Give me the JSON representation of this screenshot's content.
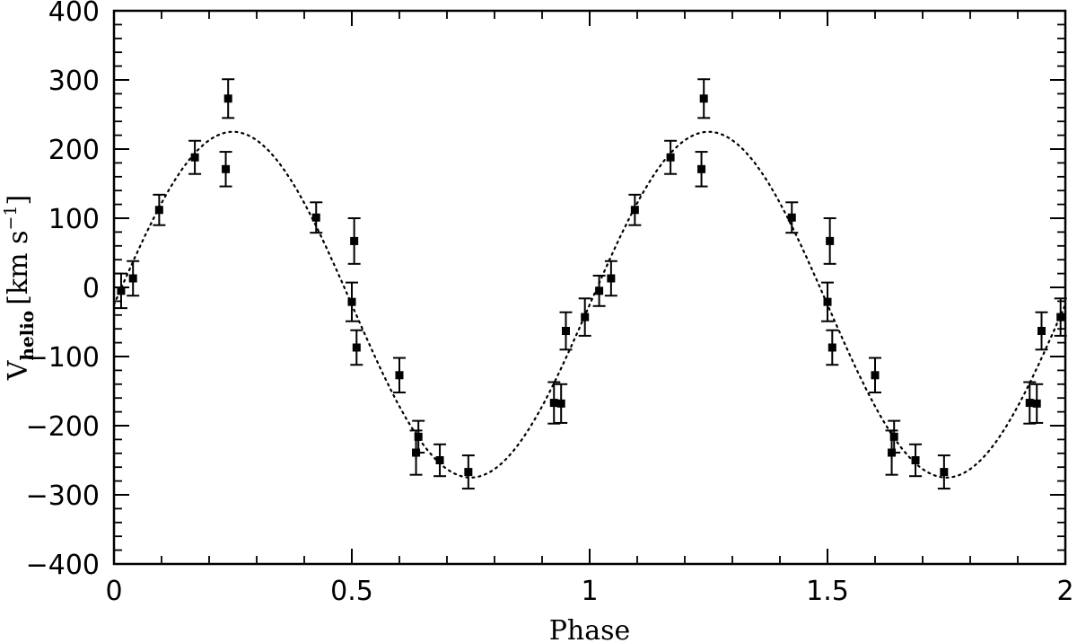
{
  "chart_data": {
    "type": "scatter",
    "xlabel": "Phase",
    "ylabel": {
      "symbol": "V",
      "subscript": "helio",
      "bracket_open": "[",
      "unit": "km s",
      "superscript": "−1",
      "bracket_close": "]"
    },
    "xlim": [
      0,
      2
    ],
    "ylim": [
      -400,
      400
    ],
    "x_ticks": [
      {
        "value": 0,
        "label": "0"
      },
      {
        "value": 0.5,
        "label": "0.5"
      },
      {
        "value": 1,
        "label": "1"
      },
      {
        "value": 1.5,
        "label": "1.5"
      },
      {
        "value": 2,
        "label": "2"
      }
    ],
    "y_ticks": [
      {
        "value": 400,
        "label": "400"
      },
      {
        "value": 300,
        "label": "300"
      },
      {
        "value": 200,
        "label": "200"
      },
      {
        "value": 100,
        "label": "100"
      },
      {
        "value": 0,
        "label": "0"
      },
      {
        "value": -100,
        "label": "−100"
      },
      {
        "value": -200,
        "label": "−200"
      },
      {
        "value": -300,
        "label": "−300"
      },
      {
        "value": -400,
        "label": "−400"
      }
    ],
    "grid": false,
    "series": [
      {
        "marker": "square",
        "color": "#000000",
        "points": [
          {
            "x": 0.015,
            "y": -5,
            "err": 25
          },
          {
            "x": 0.04,
            "y": 13,
            "err": 25
          },
          {
            "x": 0.095,
            "y": 112,
            "err": 22
          },
          {
            "x": 0.17,
            "y": 188,
            "err": 24
          },
          {
            "x": 0.235,
            "y": 171,
            "err": 25
          },
          {
            "x": 0.24,
            "y": 273,
            "err": 28
          },
          {
            "x": 0.425,
            "y": 101,
            "err": 22
          },
          {
            "x": 0.5,
            "y": -21,
            "err": 28
          },
          {
            "x": 0.505,
            "y": 67,
            "err": 33
          },
          {
            "x": 0.51,
            "y": -87,
            "err": 25
          },
          {
            "x": 0.6,
            "y": -127,
            "err": 25
          },
          {
            "x": 0.635,
            "y": -239,
            "err": 32
          },
          {
            "x": 0.64,
            "y": -216,
            "err": 23
          },
          {
            "x": 0.685,
            "y": -250,
            "err": 23
          },
          {
            "x": 0.745,
            "y": -267,
            "err": 24
          },
          {
            "x": 0.925,
            "y": -167,
            "err": 30
          },
          {
            "x": 0.94,
            "y": -168,
            "err": 28
          },
          {
            "x": 0.95,
            "y": -63,
            "err": 27
          },
          {
            "x": 0.99,
            "y": -43,
            "err": 27
          },
          {
            "x": 1.02,
            "y": -5,
            "err": 22
          },
          {
            "x": 1.045,
            "y": 13,
            "err": 25
          },
          {
            "x": 1.095,
            "y": 112,
            "err": 22
          },
          {
            "x": 1.17,
            "y": 188,
            "err": 24
          },
          {
            "x": 1.235,
            "y": 171,
            "err": 25
          },
          {
            "x": 1.24,
            "y": 273,
            "err": 28
          },
          {
            "x": 1.425,
            "y": 101,
            "err": 22
          },
          {
            "x": 1.5,
            "y": -21,
            "err": 28
          },
          {
            "x": 1.505,
            "y": 67,
            "err": 33
          },
          {
            "x": 1.51,
            "y": -87,
            "err": 25
          },
          {
            "x": 1.6,
            "y": -127,
            "err": 25
          },
          {
            "x": 1.635,
            "y": -239,
            "err": 32
          },
          {
            "x": 1.64,
            "y": -216,
            "err": 23
          },
          {
            "x": 1.685,
            "y": -250,
            "err": 23
          },
          {
            "x": 1.745,
            "y": -267,
            "err": 24
          },
          {
            "x": 1.925,
            "y": -167,
            "err": 30
          },
          {
            "x": 1.94,
            "y": -168,
            "err": 28
          },
          {
            "x": 1.95,
            "y": -63,
            "err": 27
          },
          {
            "x": 1.99,
            "y": -43,
            "err": 27
          }
        ]
      }
    ],
    "fit_curve": {
      "type": "sinusoid",
      "line_style": "dotted",
      "offset": -25,
      "amplitude": 250,
      "period": 1,
      "phase_of_maximum": 0.25
    }
  }
}
